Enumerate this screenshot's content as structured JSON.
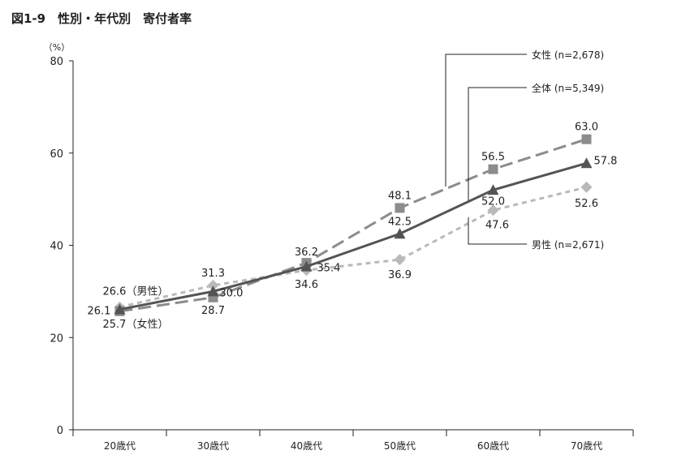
{
  "chart_data": {
    "type": "line",
    "title": "図1-9　性別・年代別　寄付者率",
    "ylabel": "（%）",
    "xlabel": "",
    "categories": [
      "20歳代",
      "30歳代",
      "40歳代",
      "50歳代",
      "60歳代",
      "70歳代"
    ],
    "ylim": [
      0,
      80
    ],
    "yticks": [
      0,
      20,
      40,
      60,
      80
    ],
    "grid": false,
    "legend_position": "right, leader lines",
    "series": [
      {
        "name": "女性 (n=2,678)",
        "key": "female",
        "marker": "square",
        "style": "long-dash",
        "color": "#8c8c8c",
        "values": [
          25.7,
          28.7,
          36.2,
          48.1,
          56.5,
          63.0
        ],
        "labels": [
          "25.7（女性）",
          "28.7",
          "36.2",
          "48.1",
          "56.5",
          "63.0"
        ]
      },
      {
        "name": "全体 (n=5,349)",
        "key": "total",
        "marker": "triangle",
        "style": "solid",
        "color": "#545454",
        "values": [
          26.1,
          30.0,
          35.4,
          42.5,
          52.0,
          57.8
        ],
        "labels": [
          "26.1",
          "30.0",
          "35.4",
          "42.5",
          "52.0",
          "57.8"
        ]
      },
      {
        "name": "男性 (n=2,671)",
        "key": "male",
        "marker": "diamond",
        "style": "short-dash",
        "color": "#b9b9b9",
        "values": [
          26.6,
          31.3,
          34.6,
          36.9,
          47.6,
          52.6
        ],
        "labels": [
          "26.6（男性）",
          "31.3",
          "34.6",
          "36.9",
          "47.6",
          "52.6"
        ]
      }
    ]
  }
}
